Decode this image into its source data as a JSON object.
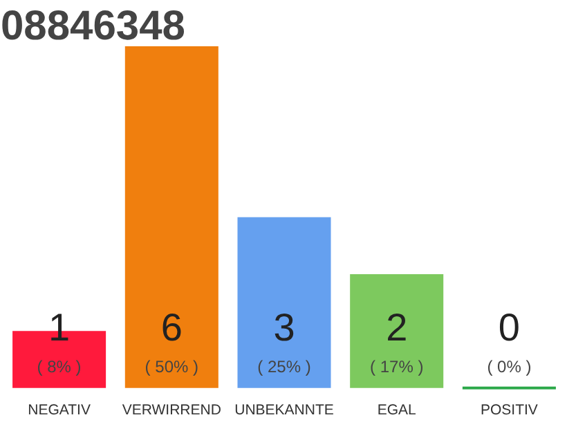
{
  "chart_data": {
    "type": "bar",
    "title": "08846348",
    "categories": [
      "NEGATIV",
      "VERWIRREND",
      "UNBEKANNTE",
      "EGAL",
      "POSITIV"
    ],
    "values": [
      1,
      6,
      3,
      2,
      0
    ],
    "colors": [
      "#ff1a3c",
      "#f07f0e",
      "#65a0ef",
      "#7dc95e",
      "#2ca84a"
    ],
    "data_labels": true,
    "annotations": [
      "( 8% )",
      "( 50% )",
      "( 25% )",
      "( 17% )",
      "( 0% )"
    ]
  }
}
